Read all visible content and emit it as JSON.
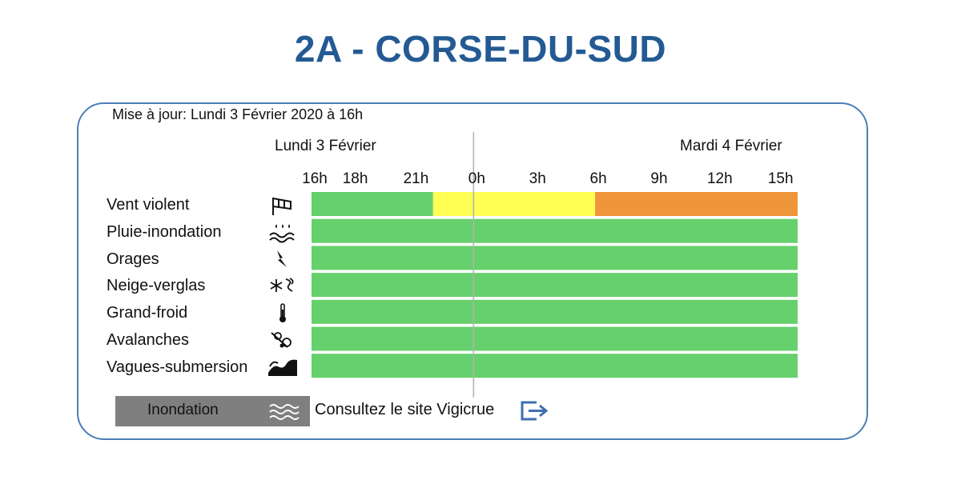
{
  "header": {
    "title": "2A - CORSE-DU-SUD"
  },
  "update_label": "Mise à jour: Lundi 3 Février 2020 à 16h",
  "days": [
    "Lundi 3 Février",
    "Mardi 4 Février"
  ],
  "chart_data": {
    "type": "heatmap",
    "time_ticks": [
      {
        "label": "16h",
        "hour": 0
      },
      {
        "label": "18h",
        "hour": 2
      },
      {
        "label": "21h",
        "hour": 5
      },
      {
        "label": "0h",
        "hour": 8
      },
      {
        "label": "3h",
        "hour": 11
      },
      {
        "label": "6h",
        "hour": 14
      },
      {
        "label": "9h",
        "hour": 17
      },
      {
        "label": "12h",
        "hour": 20
      },
      {
        "label": "15h",
        "hour": 23
      }
    ],
    "hour_range": [
      0,
      24
    ],
    "midnight_hour": 8,
    "colors": {
      "vert": "#66d06c",
      "jaune": "#ffff55",
      "orange": "#f0963a"
    },
    "rows": [
      {
        "name": "Vent violent",
        "icon": "windsock-icon",
        "segments": [
          {
            "from": 0,
            "to": 6,
            "level": "vert"
          },
          {
            "from": 6,
            "to": 14,
            "level": "jaune"
          },
          {
            "from": 14,
            "to": 24,
            "level": "orange"
          }
        ]
      },
      {
        "name": "Pluie-inondation",
        "icon": "rain-flood-icon",
        "segments": [
          {
            "from": 0,
            "to": 24,
            "level": "vert"
          }
        ]
      },
      {
        "name": "Orages",
        "icon": "lightning-icon",
        "segments": [
          {
            "from": 0,
            "to": 24,
            "level": "vert"
          }
        ]
      },
      {
        "name": "Neige-verglas",
        "icon": "snow-ice-icon",
        "segments": [
          {
            "from": 0,
            "to": 24,
            "level": "vert"
          }
        ]
      },
      {
        "name": "Grand-froid",
        "icon": "thermometer-icon",
        "segments": [
          {
            "from": 0,
            "to": 24,
            "level": "vert"
          }
        ]
      },
      {
        "name": "Avalanches",
        "icon": "avalanche-icon",
        "segments": [
          {
            "from": 0,
            "to": 24,
            "level": "vert"
          }
        ]
      },
      {
        "name": "Vagues-submersion",
        "icon": "wave-submersion-icon",
        "segments": [
          {
            "from": 0,
            "to": 24,
            "level": "vert"
          }
        ]
      }
    ]
  },
  "legend": {
    "inondation_label": "Inondation",
    "inondation_icon": "flood-waves-icon",
    "vigicrue_text": "Consultez le site Vigicrue",
    "vigicrue_icon": "external-link-icon"
  }
}
